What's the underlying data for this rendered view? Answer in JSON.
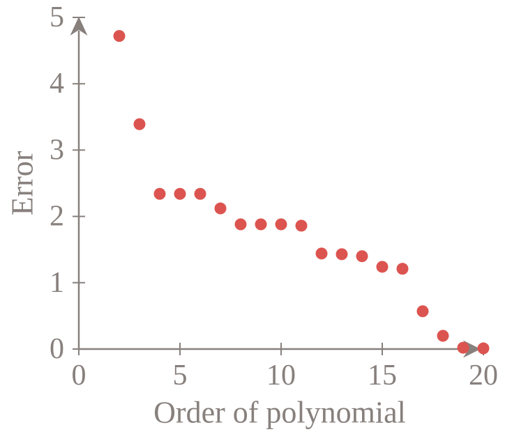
{
  "chart_data": {
    "type": "scatter",
    "title": "",
    "xlabel": "Order of polynomial",
    "ylabel": "Error",
    "x": [
      2,
      3,
      4,
      5,
      6,
      7,
      8,
      9,
      10,
      11,
      12,
      13,
      14,
      15,
      16,
      17,
      18,
      19,
      20
    ],
    "y": [
      4.72,
      3.39,
      2.34,
      2.34,
      2.34,
      2.12,
      1.88,
      1.88,
      1.88,
      1.86,
      1.44,
      1.43,
      1.4,
      1.24,
      1.21,
      0.57,
      0.2,
      0.02,
      0.01
    ],
    "xticks": [
      0,
      5,
      10,
      15,
      20
    ],
    "yticks": [
      0,
      1,
      2,
      3,
      4,
      5
    ],
    "xlim": [
      0,
      20
    ],
    "ylim": [
      0,
      5
    ],
    "grid": false,
    "legend": "none",
    "marker": "circle",
    "marker_color": "#dc5450",
    "axis_color": "#87807d",
    "background_color": "#ffffff"
  }
}
